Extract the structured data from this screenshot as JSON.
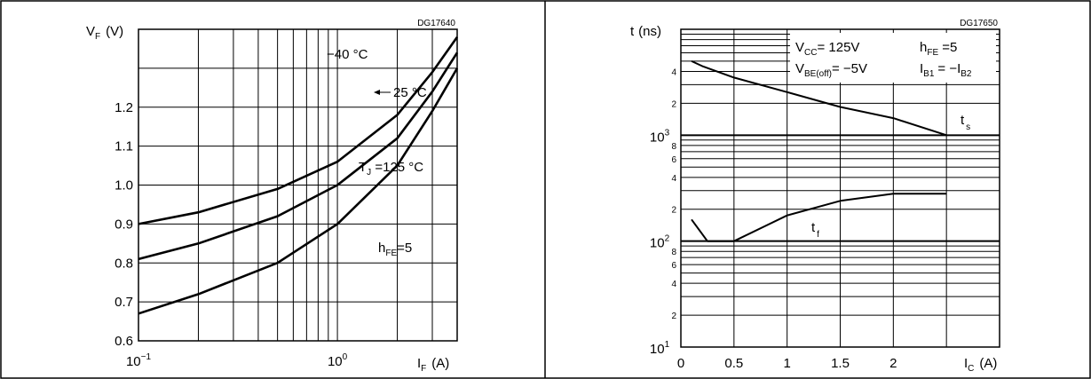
{
  "chart_data": [
    {
      "type": "line",
      "code": "DG17640",
      "x_scale": "log",
      "xlim": [
        0.1,
        4.0
      ],
      "ylim": [
        0.6,
        1.4
      ],
      "grid": true,
      "ylabel": {
        "main": "V",
        "sub": "F",
        "unit": "(V)"
      },
      "xlabel": {
        "main": "I",
        "sub": "F",
        "unit": "(A)"
      },
      "x_ticks": [
        {
          "base": "10",
          "exp": "−1",
          "value": 0.1
        },
        {
          "base": "10",
          "exp": "0",
          "value": 1
        }
      ],
      "y_ticks": [
        {
          "label": "0.6",
          "value": 0.6
        },
        {
          "label": "0.7",
          "value": 0.7
        },
        {
          "label": "0.8",
          "value": 0.8
        },
        {
          "label": "0.9",
          "value": 0.9
        },
        {
          "label": "1.0",
          "value": 1.0
        },
        {
          "label": "1.1",
          "value": 1.1
        },
        {
          "label": "1.2",
          "value": 1.2
        }
      ],
      "series": [
        {
          "name": "−40 °C",
          "x": [
            0.1,
            0.2,
            0.5,
            1.0,
            2.0,
            3.0,
            4.0
          ],
          "y": [
            0.9,
            0.93,
            0.99,
            1.06,
            1.18,
            1.29,
            1.38
          ]
        },
        {
          "name": "25 °C",
          "x": [
            0.1,
            0.2,
            0.5,
            1.0,
            2.0,
            3.0,
            4.0
          ],
          "y": [
            0.81,
            0.85,
            0.92,
            1.0,
            1.12,
            1.24,
            1.34
          ]
        },
        {
          "name": "T_J = 125 °C",
          "x": [
            0.1,
            0.2,
            0.5,
            1.0,
            2.0,
            3.0,
            4.0
          ],
          "y": [
            0.67,
            0.72,
            0.8,
            0.9,
            1.05,
            1.19,
            1.3
          ]
        }
      ],
      "annotations": {
        "minus40": "−40 °C",
        "c25": "25 °C",
        "tj_main": "T",
        "tj_sub": "J",
        "tj_rest": " =125 °C",
        "hfe_main": "h",
        "hfe_sub": "FE",
        "hfe_rest": "=5"
      }
    },
    {
      "type": "line",
      "code": "DG17650",
      "y_scale": "log",
      "xlim": [
        0,
        3.0
      ],
      "ylim": [
        10,
        10000
      ],
      "grid": true,
      "ylabel": {
        "main": "t",
        "unit": "(ns)"
      },
      "xlabel": {
        "main": "I",
        "sub": "C",
        "unit": "(A)"
      },
      "x_ticks": [
        {
          "label": "0",
          "value": 0
        },
        {
          "label": "0.5",
          "value": 0.5
        },
        {
          "label": "1",
          "value": 1
        },
        {
          "label": "1.5",
          "value": 1.5
        },
        {
          "label": "2",
          "value": 2
        }
      ],
      "y_major_ticks": [
        {
          "base": "10",
          "exp": "1",
          "value": 10
        },
        {
          "base": "10",
          "exp": "2",
          "value": 100
        },
        {
          "base": "10",
          "exp": "3",
          "value": 1000
        }
      ],
      "y_minor_ticks": [
        {
          "label": "2",
          "value": 20
        },
        {
          "label": "4",
          "value": 40
        },
        {
          "label": "6",
          "value": 60
        },
        {
          "label": "8",
          "value": 80
        },
        {
          "label": "2",
          "value": 200
        },
        {
          "label": "4",
          "value": 400
        },
        {
          "label": "6",
          "value": 600
        },
        {
          "label": "8",
          "value": 800
        },
        {
          "label": "2",
          "value": 2000
        },
        {
          "label": "4",
          "value": 4000
        }
      ],
      "series": [
        {
          "name": "t_s",
          "x": [
            0.1,
            0.2,
            0.5,
            1.0,
            1.5,
            2.0,
            2.5
          ],
          "y": [
            5000,
            4500,
            3500,
            2550,
            1850,
            1450,
            1000
          ]
        },
        {
          "name": "t_f",
          "x": [
            0.1,
            0.25,
            0.5,
            1.0,
            1.5,
            2.0,
            2.5
          ],
          "y": [
            160,
            100,
            100,
            175,
            240,
            280,
            280
          ]
        }
      ],
      "annotations": {
        "ts_main": "t",
        "ts_sub": "s",
        "tf_main": "t",
        "tf_sub": "f",
        "vcc_main": "V",
        "vcc_sub": "CC",
        "vcc_rest": "= 125V",
        "vbe_main": "V",
        "vbe_sub": "BE(off)",
        "vbe_rest": "= −5V",
        "hfe_main": "h",
        "hfe_sub": "FE",
        "hfe_rest": " =5",
        "ib_main": "I",
        "ib_sub": "B1",
        "ib_mid": "= −I",
        "ib_sub2": "B2"
      }
    }
  ]
}
